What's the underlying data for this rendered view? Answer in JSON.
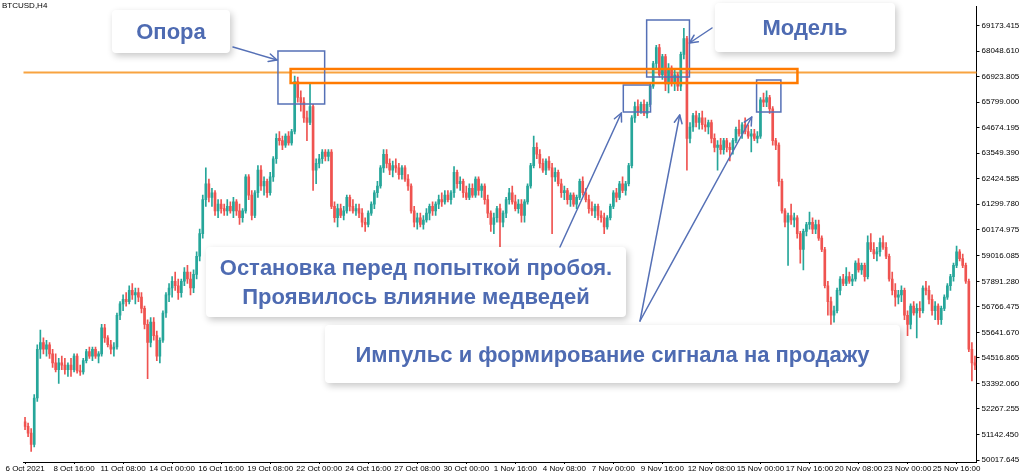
{
  "chart_data": {
    "type": "candlestick",
    "title": "BTCUSD,H4",
    "categories": [
      "6 Oct 2021",
      null,
      null,
      null,
      null,
      null,
      null,
      null,
      null,
      null,
      null,
      null,
      null,
      null,
      null,
      null,
      "8 Oct 16:00",
      null,
      null,
      null,
      null,
      null,
      null,
      null,
      null,
      null,
      null,
      null,
      null,
      null,
      null,
      null,
      "11 Oct 08:00",
      null,
      null,
      null,
      null,
      null,
      null,
      null,
      null,
      null,
      null,
      null,
      null,
      null,
      null,
      null,
      "14 Oct 00:00",
      null,
      null,
      null,
      null,
      null,
      null,
      null,
      null,
      null,
      null,
      null,
      null,
      null,
      null,
      null,
      "16 Oct 16:00",
      null,
      null,
      null,
      null,
      null,
      null,
      null,
      null,
      null,
      null,
      null,
      null,
      null,
      null,
      null,
      "19 Oct 08:00",
      null,
      null,
      null,
      null,
      null,
      null,
      null,
      null,
      null,
      null,
      null,
      null,
      null,
      null,
      null,
      "22 Oct 00:00",
      null,
      null,
      null,
      null,
      null,
      null,
      null,
      null,
      null,
      null,
      null,
      null,
      null,
      null,
      null,
      "24 Oct 16:00",
      null,
      null,
      null,
      null,
      null,
      null,
      null,
      null,
      null,
      null,
      null,
      null,
      null,
      null,
      null,
      "27 Oct 08:00",
      null,
      null,
      null,
      null,
      null,
      null,
      null,
      null,
      null,
      null,
      null,
      null,
      null,
      null,
      null,
      "30 Oct 00:00",
      null,
      null,
      null,
      null,
      null,
      null,
      null,
      null,
      null,
      null,
      null,
      null,
      null,
      null,
      null,
      "1 Nov 16:00",
      null,
      null,
      null,
      null,
      null,
      null,
      null,
      null,
      null,
      null,
      null,
      null,
      null,
      null,
      null,
      "4 Nov 08:00",
      null,
      null,
      null,
      null,
      null,
      null,
      null,
      null,
      null,
      null,
      null,
      null,
      null,
      null,
      null,
      "7 Nov 00:00",
      null,
      null,
      null,
      null,
      null,
      null,
      null,
      null,
      null,
      null,
      null,
      null,
      null,
      null,
      null,
      "9 Nov 16:00",
      null,
      null,
      null,
      null,
      null,
      null,
      null,
      null,
      null,
      null,
      null,
      null,
      null,
      null,
      null,
      "12 Nov 08:00",
      null,
      null,
      null,
      null,
      null,
      null,
      null,
      null,
      null,
      null,
      null,
      null,
      null,
      null,
      null,
      "15 Nov 00:00",
      null,
      null,
      null,
      null,
      null,
      null,
      null,
      null,
      null,
      null,
      null,
      null,
      null,
      null,
      null,
      "17 Nov 16:00",
      null,
      null,
      null,
      null,
      null,
      null,
      null,
      null,
      null,
      null,
      null,
      null,
      null,
      null,
      null,
      "20 Nov 08:00",
      null,
      null,
      null,
      null,
      null,
      null,
      null,
      null,
      null,
      null,
      null,
      null,
      null,
      null,
      null,
      "23 Nov 00:00",
      null,
      null,
      null,
      null,
      null,
      null,
      null,
      null,
      null,
      null,
      null,
      null,
      null,
      null,
      null,
      "25 Nov 16:00",
      null,
      null,
      null,
      null,
      null,
      null
    ],
    "ohlc": [
      [
        51700,
        51900,
        51350,
        51500
      ],
      [
        51500,
        51650,
        51050,
        51200
      ],
      [
        51200,
        51400,
        50400,
        50700
      ],
      [
        50700,
        52900,
        50600,
        52750
      ],
      [
        52750,
        55100,
        52600,
        54900
      ],
      [
        54900,
        55750,
        54500,
        55200
      ],
      [
        55200,
        55400,
        54700,
        54900
      ],
      [
        54900,
        55300,
        54600,
        55100
      ],
      [
        55100,
        55200,
        54500,
        54700
      ],
      [
        54700,
        54900,
        54100,
        54300
      ],
      [
        54300,
        54700,
        53900,
        54000
      ],
      [
        54000,
        54500,
        53400,
        54300
      ],
      [
        54300,
        54600,
        54000,
        54200
      ],
      [
        54200,
        54500,
        53800,
        54000
      ],
      [
        54000,
        54300,
        53700,
        54200
      ],
      [
        54200,
        54500,
        53700,
        54000
      ],
      [
        54000,
        54700,
        53900,
        54600
      ],
      [
        54600,
        54700,
        53850,
        53950
      ],
      [
        53950,
        54200,
        53750,
        53900
      ],
      [
        53900,
        54500,
        53800,
        54400
      ],
      [
        54400,
        54900,
        54300,
        54800
      ],
      [
        54800,
        55000,
        54500,
        54600
      ],
      [
        54600,
        55000,
        54400,
        54900
      ],
      [
        54900,
        55000,
        54500,
        54600
      ],
      [
        54600,
        54800,
        54300,
        54700
      ],
      [
        54700,
        56000,
        54600,
        55850
      ],
      [
        55850,
        56000,
        55200,
        55400
      ],
      [
        55400,
        55500,
        55000,
        55100
      ],
      [
        55100,
        55300,
        54700,
        54900
      ],
      [
        54900,
        55200,
        54600,
        55000
      ],
      [
        55000,
        56500,
        54900,
        56400
      ],
      [
        56400,
        57000,
        56200,
        56900
      ],
      [
        56900,
        57300,
        56600,
        57100
      ],
      [
        57100,
        57400,
        56800,
        57000
      ],
      [
        57000,
        57700,
        56900,
        57500
      ],
      [
        57500,
        57800,
        57100,
        57300
      ],
      [
        57300,
        57600,
        56900,
        57400
      ],
      [
        57400,
        57600,
        57000,
        57200
      ],
      [
        57200,
        57400,
        56500,
        56700
      ],
      [
        56700,
        56800,
        55800,
        56000
      ],
      [
        56000,
        56200,
        53600,
        55200
      ],
      [
        55200,
        56300,
        55000,
        56100
      ],
      [
        56100,
        56300,
        55300,
        55500
      ],
      [
        55500,
        55700,
        54400,
        54600
      ],
      [
        54600,
        55400,
        54300,
        55300
      ],
      [
        55300,
        56600,
        55200,
        56500
      ],
      [
        56500,
        57400,
        56300,
        57300
      ],
      [
        57300,
        57800,
        57000,
        57600
      ],
      [
        57600,
        58100,
        57200,
        57900
      ],
      [
        57900,
        58300,
        57500,
        57700
      ],
      [
        57700,
        58000,
        57100,
        57400
      ],
      [
        57400,
        58000,
        57200,
        57900
      ],
      [
        57900,
        58500,
        57700,
        58300
      ],
      [
        58300,
        58600,
        57800,
        58000
      ],
      [
        58000,
        58300,
        57300,
        57600
      ],
      [
        57600,
        58400,
        57400,
        58200
      ],
      [
        58200,
        59200,
        58000,
        59000
      ],
      [
        59000,
        60200,
        58800,
        60000
      ],
      [
        60000,
        61700,
        59800,
        61500
      ],
      [
        61500,
        62900,
        61200,
        62200
      ],
      [
        62200,
        62400,
        61400,
        61600
      ],
      [
        61600,
        62000,
        61200,
        61800
      ],
      [
        61800,
        61900,
        60800,
        61000
      ],
      [
        61000,
        61500,
        60700,
        61300
      ],
      [
        61300,
        61500,
        60900,
        61100
      ],
      [
        61100,
        61300,
        60800,
        61000
      ],
      [
        61000,
        61500,
        60800,
        61200
      ],
      [
        61200,
        61400,
        60900,
        61000
      ],
      [
        61000,
        61600,
        60700,
        61400
      ],
      [
        61400,
        61500,
        60800,
        61000
      ],
      [
        61000,
        61300,
        60400,
        60700
      ],
      [
        60700,
        61100,
        60500,
        61000
      ],
      [
        61000,
        62600,
        60900,
        62500
      ],
      [
        62500,
        62600,
        61500,
        61700
      ],
      [
        61700,
        61900,
        60600,
        60800
      ],
      [
        60800,
        61900,
        60700,
        61800
      ],
      [
        61800,
        63000,
        61600,
        62800
      ],
      [
        62800,
        63000,
        61900,
        62100
      ],
      [
        62100,
        62500,
        61700,
        62300
      ],
      [
        62300,
        62400,
        61600,
        61800
      ],
      [
        61800,
        62700,
        61700,
        62500
      ],
      [
        62500,
        63400,
        62300,
        63300
      ],
      [
        63300,
        64400,
        63100,
        64200
      ],
      [
        64200,
        64500,
        63900,
        64100
      ],
      [
        64100,
        64300,
        63700,
        63900
      ],
      [
        63900,
        64400,
        63800,
        64300
      ],
      [
        64300,
        64500,
        63900,
        64000
      ],
      [
        64000,
        64600,
        63900,
        64500
      ],
      [
        64500,
        66950,
        64400,
        66700
      ],
      [
        66700,
        66900,
        65800,
        66000
      ],
      [
        66000,
        66300,
        65400,
        65800
      ],
      [
        65800,
        66000,
        64900,
        65100
      ],
      [
        65100,
        65400,
        64100,
        64900
      ],
      [
        64900,
        66650,
        64800,
        65600
      ],
      [
        65600,
        65700,
        61900,
        62800
      ],
      [
        62800,
        63300,
        62200,
        63100
      ],
      [
        63100,
        63500,
        62900,
        63300
      ],
      [
        63300,
        63700,
        63100,
        63600
      ],
      [
        63600,
        63700,
        63200,
        63400
      ],
      [
        63400,
        63700,
        63200,
        63600
      ],
      [
        63600,
        63700,
        61100,
        61200
      ],
      [
        61200,
        61400,
        60500,
        60700
      ],
      [
        60700,
        61300,
        60300,
        61100
      ],
      [
        61100,
        61300,
        60700,
        60800
      ],
      [
        60800,
        61200,
        60600,
        61000
      ],
      [
        61000,
        61700,
        60900,
        61600
      ],
      [
        61600,
        61700,
        61000,
        61200
      ],
      [
        61200,
        61500,
        60900,
        61000
      ],
      [
        61000,
        61300,
        60800,
        61100
      ],
      [
        61100,
        61300,
        60700,
        60900
      ],
      [
        60900,
        61100,
        60300,
        60500
      ],
      [
        60500,
        60700,
        60100,
        60400
      ],
      [
        60400,
        61000,
        60300,
        60900
      ],
      [
        60900,
        61400,
        60800,
        61300
      ],
      [
        61300,
        61900,
        61100,
        61800
      ],
      [
        61800,
        62300,
        61600,
        62100
      ],
      [
        62100,
        63000,
        62000,
        62900
      ],
      [
        62900,
        63700,
        62700,
        63500
      ],
      [
        63500,
        63700,
        62900,
        63100
      ],
      [
        63100,
        63300,
        62600,
        62800
      ],
      [
        62800,
        63200,
        62500,
        63000
      ],
      [
        63000,
        63300,
        62700,
        62900
      ],
      [
        62900,
        63100,
        62400,
        62600
      ],
      [
        62600,
        63000,
        62400,
        62900
      ],
      [
        62900,
        63000,
        62300,
        62400
      ],
      [
        62400,
        62600,
        61900,
        62100
      ],
      [
        62100,
        62200,
        60900,
        61000
      ],
      [
        61000,
        61200,
        60300,
        60500
      ],
      [
        60500,
        60900,
        60200,
        60700
      ],
      [
        60700,
        60900,
        60300,
        60400
      ],
      [
        60400,
        60800,
        60200,
        60600
      ],
      [
        60600,
        61100,
        60500,
        60900
      ],
      [
        60900,
        61300,
        60600,
        61200
      ],
      [
        61200,
        61400,
        60800,
        61000
      ],
      [
        61000,
        61400,
        60800,
        61300
      ],
      [
        61300,
        61700,
        61100,
        61500
      ],
      [
        61500,
        61800,
        61200,
        61400
      ],
      [
        61400,
        61900,
        61300,
        61700
      ],
      [
        61700,
        61900,
        61400,
        61500
      ],
      [
        61500,
        61900,
        61300,
        61800
      ],
      [
        61800,
        62950,
        61600,
        62700
      ],
      [
        62700,
        62800,
        62000,
        62200
      ],
      [
        62200,
        62500,
        61900,
        62300
      ],
      [
        62300,
        62400,
        61600,
        61800
      ],
      [
        61800,
        62100,
        61500,
        61600
      ],
      [
        61600,
        62200,
        61500,
        62000
      ],
      [
        62000,
        62200,
        61600,
        61700
      ],
      [
        61700,
        62500,
        61600,
        62400
      ],
      [
        62400,
        62500,
        61700,
        61900
      ],
      [
        61900,
        62200,
        61600,
        62100
      ],
      [
        62100,
        62200,
        61300,
        61500
      ],
      [
        61500,
        61700,
        60700,
        60900
      ],
      [
        60900,
        61000,
        60100,
        60400
      ],
      [
        60400,
        60900,
        60000,
        60700
      ],
      [
        60700,
        61200,
        60500,
        61100
      ],
      [
        61100,
        61300,
        59400,
        60500
      ],
      [
        60500,
        61000,
        60300,
        60900
      ],
      [
        60900,
        61600,
        60700,
        61500
      ],
      [
        61500,
        62000,
        61300,
        61800
      ],
      [
        61800,
        62100,
        61300,
        61400
      ],
      [
        61400,
        61700,
        61000,
        61100
      ],
      [
        61100,
        61500,
        60900,
        61300
      ],
      [
        61300,
        61500,
        60500,
        60800
      ],
      [
        60800,
        61500,
        60500,
        61400
      ],
      [
        61400,
        62200,
        61300,
        62100
      ],
      [
        62100,
        63100,
        62000,
        63000
      ],
      [
        63000,
        64300,
        62900,
        63800
      ],
      [
        63800,
        64000,
        63300,
        63500
      ],
      [
        63500,
        63700,
        62900,
        63100
      ],
      [
        63100,
        63300,
        62700,
        62800
      ],
      [
        62800,
        63300,
        62600,
        63200
      ],
      [
        63200,
        63400,
        62800,
        62900
      ],
      [
        62900,
        63100,
        60000,
        62500
      ],
      [
        62500,
        62900,
        62300,
        62700
      ],
      [
        62700,
        62800,
        62100,
        62200
      ],
      [
        62200,
        62400,
        61600,
        61800
      ],
      [
        61800,
        62100,
        61500,
        61900
      ],
      [
        61900,
        62000,
        61300,
        61500
      ],
      [
        61500,
        61800,
        61200,
        61700
      ],
      [
        61700,
        61800,
        61200,
        61300
      ],
      [
        61300,
        61700,
        61100,
        61600
      ],
      [
        61600,
        62400,
        61500,
        62300
      ],
      [
        62300,
        62500,
        61700,
        61800
      ],
      [
        61800,
        62000,
        61400,
        61500
      ],
      [
        61500,
        61700,
        60900,
        61100
      ],
      [
        61100,
        61400,
        60800,
        61000
      ],
      [
        61000,
        61300,
        60700,
        61200
      ],
      [
        61200,
        61300,
        60600,
        60800
      ],
      [
        60800,
        61000,
        60500,
        60700
      ],
      [
        60700,
        60900,
        60000,
        60300
      ],
      [
        60300,
        60800,
        60200,
        60700
      ],
      [
        60700,
        61300,
        60600,
        61200
      ],
      [
        61200,
        61900,
        61100,
        61800
      ],
      [
        61800,
        62000,
        61400,
        61600
      ],
      [
        61600,
        62300,
        61500,
        62200
      ],
      [
        62200,
        62500,
        61800,
        61900
      ],
      [
        61900,
        62300,
        61700,
        62200
      ],
      [
        62200,
        63100,
        62100,
        63000
      ],
      [
        63000,
        65200,
        62900,
        65100
      ],
      [
        65100,
        65800,
        64900,
        65600
      ],
      [
        65600,
        65900,
        65200,
        65400
      ],
      [
        65400,
        65800,
        65300,
        65700
      ],
      [
        65700,
        65900,
        65200,
        65300
      ],
      [
        65300,
        65800,
        65100,
        65700
      ],
      [
        65700,
        66600,
        65600,
        66500
      ],
      [
        66500,
        67600,
        66400,
        67500
      ],
      [
        67500,
        68300,
        67300,
        68200
      ],
      [
        68200,
        68350,
        66900,
        67000
      ],
      [
        67000,
        67900,
        66800,
        67800
      ],
      [
        67800,
        67900,
        66300,
        66600
      ],
      [
        66600,
        67500,
        66200,
        67300
      ],
      [
        67300,
        67400,
        66500,
        66700
      ],
      [
        66700,
        67200,
        66300,
        67000
      ],
      [
        67000,
        67100,
        66300,
        66500
      ],
      [
        66500,
        68000,
        66300,
        67900
      ],
      [
        67900,
        69050,
        67700,
        68600
      ],
      [
        68600,
        68700,
        62800,
        64200
      ],
      [
        64200,
        64900,
        64000,
        64700
      ],
      [
        64700,
        65300,
        64500,
        65200
      ],
      [
        65200,
        65400,
        64700,
        64900
      ],
      [
        64900,
        65300,
        64600,
        65100
      ],
      [
        65100,
        65400,
        64600,
        64800
      ],
      [
        64800,
        65100,
        64500,
        64700
      ],
      [
        64700,
        65000,
        64400,
        64900
      ],
      [
        64900,
        65000,
        64000,
        64200
      ],
      [
        64200,
        64400,
        63600,
        63800
      ],
      [
        63800,
        64100,
        62800,
        63900
      ],
      [
        63900,
        64200,
        63500,
        63700
      ],
      [
        63700,
        64200,
        63500,
        64100
      ],
      [
        64100,
        64200,
        63600,
        63800
      ],
      [
        63800,
        64000,
        63200,
        63700
      ],
      [
        63700,
        64200,
        63500,
        64100
      ],
      [
        64100,
        64700,
        64000,
        64600
      ],
      [
        64600,
        65000,
        64300,
        64400
      ],
      [
        64400,
        64900,
        64200,
        64800
      ],
      [
        64800,
        65100,
        64400,
        64500
      ],
      [
        64500,
        64800,
        64200,
        64300
      ],
      [
        64300,
        64600,
        63600,
        64400
      ],
      [
        64400,
        64600,
        64100,
        64200
      ],
      [
        64200,
        64500,
        64000,
        64300
      ],
      [
        64300,
        66000,
        64200,
        65900
      ],
      [
        65900,
        66200,
        65600,
        65800
      ],
      [
        65800,
        66300,
        65600,
        66000
      ],
      [
        66000,
        66100,
        65300,
        65500
      ],
      [
        65500,
        65600,
        63900,
        64100
      ],
      [
        64100,
        64200,
        63700,
        63900
      ],
      [
        63900,
        64000,
        62100,
        62300
      ],
      [
        62300,
        62400,
        60900,
        61000
      ],
      [
        61000,
        61100,
        60300,
        60500
      ],
      [
        60500,
        60900,
        58600,
        60800
      ],
      [
        60800,
        61300,
        60400,
        60600
      ],
      [
        60600,
        60900,
        60300,
        60700
      ],
      [
        60700,
        60800,
        59800,
        60000
      ],
      [
        60000,
        60100,
        58700,
        59300
      ],
      [
        59300,
        60200,
        58400,
        60100
      ],
      [
        60100,
        60500,
        59900,
        60400
      ],
      [
        60400,
        60950,
        60200,
        60500
      ],
      [
        60500,
        60700,
        60000,
        60200
      ],
      [
        60200,
        60600,
        60000,
        60400
      ],
      [
        60400,
        60600,
        59700,
        59800
      ],
      [
        59800,
        59900,
        59200,
        59300
      ],
      [
        59300,
        59400,
        57600,
        57700
      ],
      [
        57700,
        57900,
        56400,
        57000
      ],
      [
        57000,
        57200,
        56000,
        56400
      ],
      [
        56400,
        56800,
        56100,
        56600
      ],
      [
        56600,
        57600,
        56500,
        57500
      ],
      [
        57500,
        58100,
        57300,
        58000
      ],
      [
        58000,
        58200,
        57700,
        57800
      ],
      [
        57800,
        58500,
        57700,
        58100
      ],
      [
        58100,
        58300,
        57800,
        57900
      ],
      [
        57900,
        58200,
        57700,
        58000
      ],
      [
        58000,
        58800,
        57900,
        58700
      ],
      [
        58700,
        58900,
        58300,
        58400
      ],
      [
        58400,
        58700,
        58200,
        58600
      ],
      [
        58600,
        58700,
        57900,
        58100
      ],
      [
        58100,
        59900,
        58000,
        59600
      ],
      [
        59600,
        60000,
        59200,
        59300
      ],
      [
        59300,
        59600,
        58900,
        59100
      ],
      [
        59100,
        59400,
        58800,
        59200
      ],
      [
        59200,
        59800,
        59000,
        59600
      ],
      [
        59600,
        59900,
        59300,
        59400
      ],
      [
        59400,
        59600,
        58900,
        59000
      ],
      [
        59000,
        59100,
        57900,
        58000
      ],
      [
        58000,
        58300,
        57300,
        57500
      ],
      [
        57500,
        57800,
        56800,
        57200
      ],
      [
        57200,
        57500,
        56900,
        57300
      ],
      [
        57300,
        57700,
        57000,
        57500
      ],
      [
        57500,
        57600,
        56200,
        56400
      ],
      [
        56400,
        56600,
        55500,
        56000
      ],
      [
        56000,
        56900,
        55800,
        56800
      ],
      [
        56800,
        57000,
        56400,
        56500
      ],
      [
        56500,
        56900,
        55400,
        56700
      ],
      [
        56700,
        57000,
        56300,
        56600
      ],
      [
        56600,
        57700,
        56500,
        57600
      ],
      [
        57600,
        57900,
        57300,
        57500
      ],
      [
        57500,
        57700,
        56900,
        57100
      ],
      [
        57100,
        57300,
        56400,
        56600
      ],
      [
        56600,
        57000,
        56200,
        56800
      ],
      [
        56800,
        56900,
        56000,
        56200
      ],
      [
        56200,
        56800,
        56000,
        56700
      ],
      [
        56700,
        57300,
        56600,
        57200
      ],
      [
        57200,
        57800,
        57100,
        57700
      ],
      [
        57700,
        58200,
        57500,
        58100
      ],
      [
        58100,
        58700,
        57900,
        58600
      ],
      [
        58600,
        59450,
        58500,
        59200
      ],
      [
        59200,
        59300,
        58800,
        58900
      ],
      [
        58900,
        59100,
        58500,
        58600
      ],
      [
        58600,
        58700,
        57800,
        57900
      ],
      [
        57900,
        58000,
        54800,
        54900
      ],
      [
        54900,
        55200,
        53500,
        54300
      ],
      [
        54300,
        54600,
        54000,
        54200
      ]
    ],
    "colors": [
      "#ef5350",
      "#ef5350",
      "#ef5350",
      "#26a69a",
      "#26a69a",
      "#26a69a",
      "#ef5350",
      "#26a69a",
      "#ef5350",
      "#ef5350",
      "#ef5350",
      "#26a69a",
      "#ef5350",
      "#ef5350",
      "#26a69a",
      "#ef5350",
      "#26a69a",
      "#ef5350",
      "#ef5350",
      "#26a69a",
      "#26a69a",
      "#ef5350",
      "#26a69a",
      "#ef5350",
      "#26a69a",
      "#26a69a",
      "#ef5350",
      "#ef5350",
      "#ef5350",
      "#26a69a",
      "#26a69a",
      "#26a69a",
      "#26a69a",
      "#ef5350",
      "#26a69a",
      "#ef5350",
      "#26a69a",
      "#ef5350",
      "#ef5350",
      "#ef5350",
      "#ef5350",
      "#26a69a",
      "#ef5350",
      "#ef5350",
      "#26a69a",
      "#26a69a",
      "#26a69a",
      "#26a69a",
      "#26a69a",
      "#ef5350",
      "#ef5350",
      "#26a69a",
      "#26a69a",
      "#ef5350",
      "#ef5350",
      "#26a69a",
      "#26a69a",
      "#26a69a",
      "#26a69a",
      "#26a69a",
      "#ef5350",
      "#26a69a",
      "#ef5350",
      "#26a69a",
      "#ef5350",
      "#ef5350",
      "#26a69a",
      "#ef5350",
      "#26a69a",
      "#ef5350",
      "#ef5350",
      "#26a69a",
      "#26a69a",
      "#ef5350",
      "#ef5350",
      "#26a69a",
      "#26a69a",
      "#ef5350",
      "#26a69a",
      "#ef5350",
      "#26a69a",
      "#26a69a",
      "#26a69a",
      "#ef5350",
      "#ef5350",
      "#26a69a",
      "#ef5350",
      "#26a69a",
      "#26a69a",
      "#ef5350",
      "#ef5350",
      "#ef5350",
      "#ef5350",
      "#26a69a",
      "#ef5350",
      "#26a69a",
      "#26a69a",
      "#26a69a",
      "#ef5350",
      "#26a69a",
      "#ef5350",
      "#ef5350",
      "#26a69a",
      "#ef5350",
      "#26a69a",
      "#26a69a",
      "#ef5350",
      "#ef5350",
      "#26a69a",
      "#ef5350",
      "#ef5350",
      "#ef5350",
      "#26a69a",
      "#26a69a",
      "#26a69a",
      "#26a69a",
      "#26a69a",
      "#26a69a",
      "#ef5350",
      "#ef5350",
      "#26a69a",
      "#ef5350",
      "#ef5350",
      "#26a69a",
      "#ef5350",
      "#ef5350",
      "#ef5350",
      "#ef5350",
      "#26a69a",
      "#ef5350",
      "#26a69a",
      "#26a69a",
      "#26a69a",
      "#ef5350",
      "#26a69a",
      "#26a69a",
      "#ef5350",
      "#26a69a",
      "#ef5350",
      "#26a69a",
      "#26a69a",
      "#ef5350",
      "#26a69a",
      "#ef5350",
      "#ef5350",
      "#26a69a",
      "#ef5350",
      "#26a69a",
      "#ef5350",
      "#26a69a",
      "#ef5350",
      "#ef5350",
      "#ef5350",
      "#26a69a",
      "#26a69a",
      "#ef5350",
      "#26a69a",
      "#26a69a",
      "#26a69a",
      "#ef5350",
      "#ef5350",
      "#26a69a",
      "#ef5350",
      "#26a69a",
      "#26a69a",
      "#26a69a",
      "#26a69a",
      "#ef5350",
      "#ef5350",
      "#ef5350",
      "#26a69a",
      "#ef5350",
      "#ef5350",
      "#26a69a",
      "#ef5350",
      "#ef5350",
      "#26a69a",
      "#ef5350",
      "#26a69a",
      "#ef5350",
      "#26a69a",
      "#26a69a",
      "#ef5350",
      "#ef5350",
      "#ef5350",
      "#ef5350",
      "#26a69a",
      "#ef5350",
      "#ef5350",
      "#ef5350",
      "#26a69a",
      "#26a69a",
      "#26a69a",
      "#ef5350",
      "#26a69a",
      "#ef5350",
      "#26a69a",
      "#26a69a",
      "#26a69a",
      "#26a69a",
      "#ef5350",
      "#26a69a",
      "#ef5350",
      "#26a69a",
      "#26a69a",
      "#26a69a",
      "#26a69a",
      "#ef5350",
      "#26a69a",
      "#ef5350",
      "#26a69a",
      "#ef5350",
      "#26a69a",
      "#ef5350",
      "#26a69a",
      "#26a69a",
      "#ef5350",
      "#26a69a",
      "#26a69a",
      "#ef5350",
      "#26a69a",
      "#ef5350",
      "#ef5350",
      "#26a69a",
      "#ef5350",
      "#ef5350",
      "#26a69a",
      "#ef5350",
      "#26a69a",
      "#ef5350",
      "#ef5350",
      "#26a69a",
      "#26a69a",
      "#ef5350",
      "#26a69a",
      "#ef5350",
      "#ef5350",
      "#26a69a",
      "#ef5350",
      "#26a69a",
      "#26a69a",
      "#ef5350",
      "#26a69a",
      "#ef5350",
      "#ef5350",
      "#ef5350",
      "#ef5350",
      "#ef5350",
      "#ef5350",
      "#26a69a",
      "#ef5350",
      "#26a69a",
      "#ef5350",
      "#ef5350",
      "#26a69a",
      "#26a69a",
      "#26a69a",
      "#ef5350",
      "#26a69a",
      "#ef5350",
      "#ef5350",
      "#ef5350",
      "#ef5350",
      "#ef5350",
      "#26a69a",
      "#26a69a",
      "#26a69a",
      "#ef5350",
      "#26a69a",
      "#ef5350",
      "#26a69a",
      "#26a69a",
      "#ef5350",
      "#26a69a",
      "#ef5350",
      "#26a69a",
      "#ef5350",
      "#ef5350",
      "#26a69a",
      "#26a69a",
      "#ef5350",
      "#ef5350",
      "#ef5350",
      "#ef5350",
      "#ef5350",
      "#26a69a",
      "#26a69a",
      "#ef5350",
      "#ef5350",
      "#26a69a",
      "#ef5350",
      "#26a69a",
      "#ef5350",
      "#26a69a",
      "#ef5350",
      "#ef5350",
      "#ef5350",
      "#26a69a",
      "#ef5350",
      "#26a69a",
      "#26a69a",
      "#26a69a",
      "#26a69a",
      "#26a69a",
      "#26a69a",
      "#ef5350",
      "#ef5350",
      "#ef5350",
      "#ef5350",
      "#ef5350",
      "#ef5350"
    ],
    "ylim": [
      49930,
      70000
    ],
    "yticks": [
      69173.415,
      {
        "value": 68048.61,
        "label": "68048.610"
      },
      66923.805,
      {
        "value": 65799,
        "label": "65799.000"
      },
      64674.195,
      {
        "value": 63549.39,
        "label": "63549.390"
      },
      62424.585,
      {
        "value": 61299.78,
        "label": "61299.780"
      },
      60174.975,
      59016.085,
      {
        "value": 57891.28,
        "label": "57891.280"
      },
      56766.475,
      {
        "value": 55641.67,
        "label": "55641.670"
      },
      54516.865,
      {
        "value": 53392.06,
        "label": "53392.060"
      },
      52267.255,
      {
        "value": 51142.45,
        "label": "51142.450"
      },
      50017.645
    ],
    "ref_lines": [
      {
        "axis": "y",
        "value": 67100,
        "color": "#f8a340"
      }
    ],
    "annotations": [
      "Опора",
      "Модель",
      "Остановка перед попыткой пробоя.\nПроявилось влияние медведей",
      "Импульс и формирование сигнала на продажу"
    ]
  }
}
